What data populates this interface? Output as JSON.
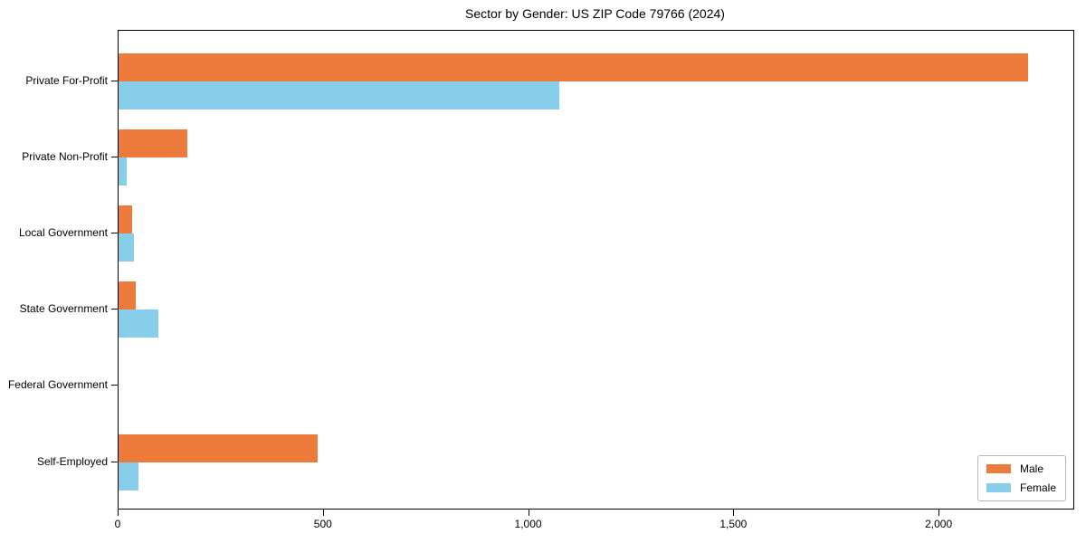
{
  "title": "Sector by Gender: US ZIP Code 79766 (2024)",
  "chart_data": {
    "type": "bar",
    "orientation": "horizontal",
    "title": "Sector by Gender: US ZIP Code 79766 (2024)",
    "xlabel": "",
    "ylabel": "",
    "categories": [
      "Private For-Profit",
      "Private Non-Profit",
      "Local Government",
      "State Government",
      "Federal Government",
      "Self-Employed"
    ],
    "series": [
      {
        "name": "Male",
        "color": "#EB7A3B",
        "values": [
          2216,
          168,
          33,
          41,
          0,
          485
        ]
      },
      {
        "name": "Female",
        "color": "#87CEEB",
        "values": [
          1073,
          20,
          38,
          96,
          0,
          49
        ]
      }
    ],
    "xlim": [
      0,
      2326
    ],
    "xticks": [
      0,
      500,
      1000,
      1500,
      2000
    ],
    "xtick_labels": [
      "0",
      "500",
      "1,000",
      "1,500",
      "2,000"
    ],
    "grid": false,
    "legend_position": "lower right"
  },
  "legend": {
    "male_label": "Male",
    "female_label": "Female",
    "male_color": "#EB7A3B",
    "female_color": "#87CEEB"
  }
}
